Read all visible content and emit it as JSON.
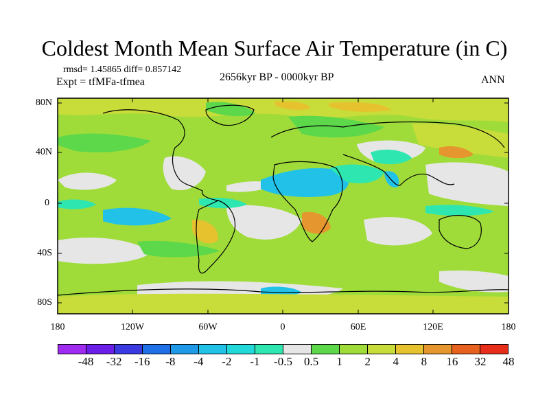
{
  "title": "Coldest Month Mean Surface Air Temperature (in C)",
  "stats": "rmsd= 1.45865 diff= 0.857142",
  "experiment": "Expt = tfMFa-tfmea",
  "period": "2656kyr BP - 0000kyr BP",
  "season": "ANN",
  "lat_labels": [
    "80N",
    "40N",
    "0",
    "40S",
    "80S"
  ],
  "lon_labels": [
    "180",
    "120W",
    "60W",
    "0",
    "60E",
    "120E",
    "180"
  ],
  "colorbar": {
    "labels": [
      "-48",
      "-32",
      "-16",
      "-8",
      "-4",
      "-2",
      "-1",
      "-0.5",
      "0.5",
      "1",
      "2",
      "4",
      "8",
      "16",
      "32",
      "48"
    ],
    "colors": [
      "#9f2bf0",
      "#6a1ee8",
      "#3a3ae0",
      "#1f6fe6",
      "#1f9ae8",
      "#22c2e8",
      "#23d8d8",
      "#2ee6b0",
      "#e6e6e6",
      "#5cd84a",
      "#9fdc3a",
      "#c8dc3a",
      "#e6c22e",
      "#e6962e",
      "#e6621e",
      "#e62e1a"
    ]
  }
}
